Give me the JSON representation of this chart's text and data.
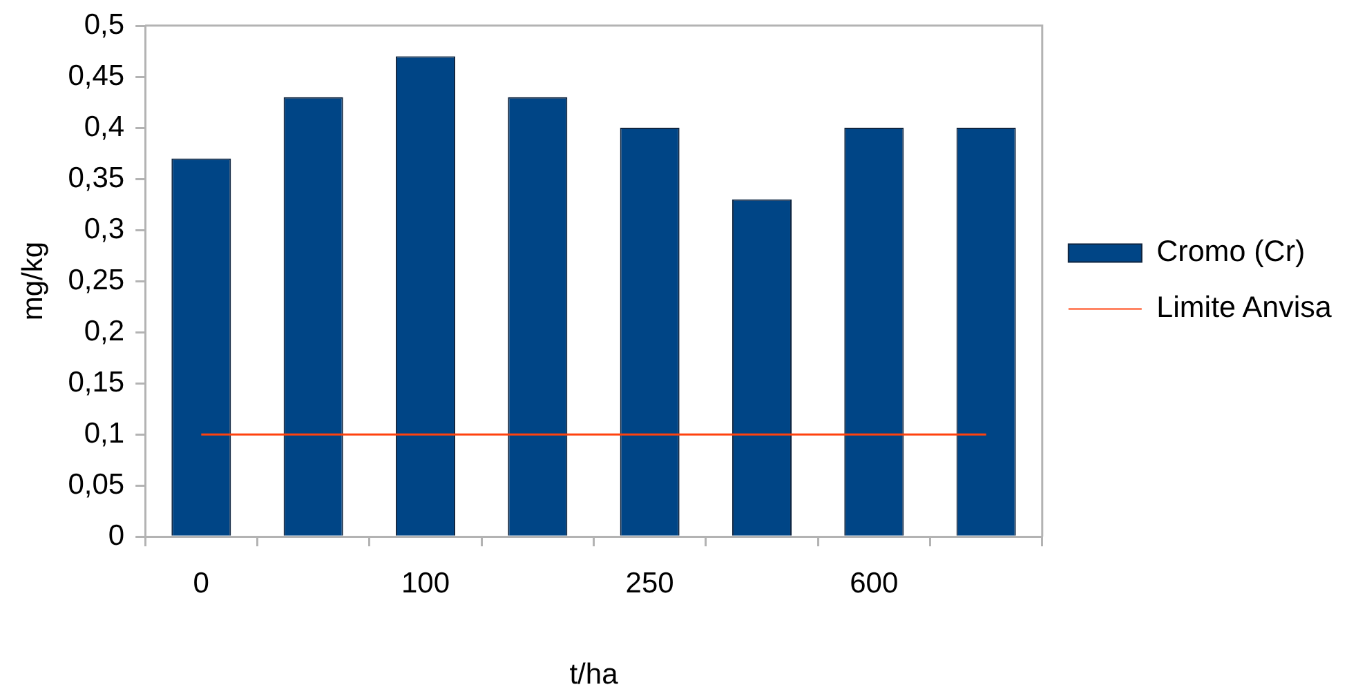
{
  "chart_data": {
    "type": "bar",
    "xlabel": "t/ha",
    "ylabel": "mg/kg",
    "categories": [
      "0",
      null,
      "100",
      null,
      "250",
      null,
      "600",
      null
    ],
    "series": [
      {
        "name": "Cromo (Cr)",
        "color": "#004586",
        "values": [
          0.37,
          0.43,
          0.47,
          0.43,
          0.4,
          0.33,
          0.4,
          0.4
        ]
      },
      {
        "name": "Limite Anvisa",
        "type": "line",
        "color": "#ff420e",
        "values": [
          0.1,
          0.1,
          0.1,
          0.1,
          0.1,
          0.1,
          0.1,
          0.1
        ]
      }
    ],
    "ylim": [
      0,
      0.5
    ],
    "yticks": [
      0,
      {
        "value": 0.05,
        "label": "0,05"
      },
      {
        "value": 0.1,
        "label": "0,1"
      },
      {
        "value": 0.15,
        "label": "0,15"
      },
      {
        "value": 0.2,
        "label": "0,2"
      },
      {
        "value": 0.25,
        "label": "0,25"
      },
      {
        "value": 0.3,
        "label": "0,3"
      },
      {
        "value": 0.35,
        "label": "0,35"
      },
      {
        "value": 0.4,
        "label": "0,4"
      },
      {
        "value": 0.45,
        "label": "0,45"
      },
      {
        "value": 0.5,
        "label": "0,5"
      }
    ],
    "grid": false,
    "legend": "right",
    "marker": "none"
  }
}
